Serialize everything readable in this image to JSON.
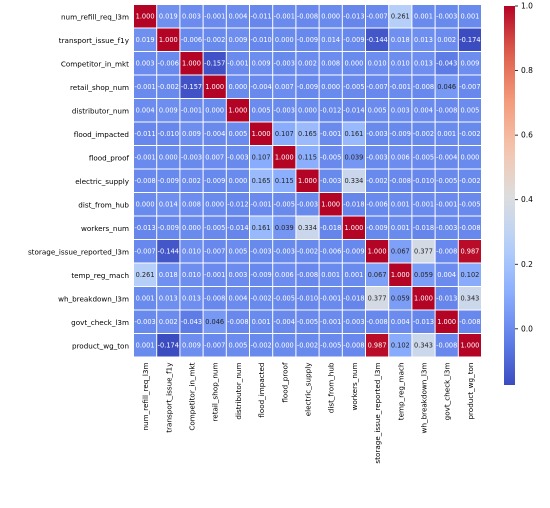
{
  "chart_data": {
    "type": "heatmap",
    "title": "",
    "xlabel": "",
    "ylabel": "",
    "labels": [
      "num_refill_req_l3m",
      "transport_issue_f1y",
      "Competitor_in_mkt",
      "retail_shop_num",
      "distributor_num",
      "flood_impacted",
      "flood_proof",
      "electric_supply",
      "dist_from_hub",
      "workers_num",
      "storage_issue_reported_l3m",
      "temp_reg_mach",
      "wh_breakdown_l3m",
      "govt_check_l3m",
      "product_wg_ton"
    ],
    "matrix": [
      [
        1.0,
        0.019,
        0.003,
        -0.001,
        0.004,
        -0.011,
        -0.001,
        -0.008,
        0.0,
        -0.013,
        -0.007,
        0.261,
        0.001,
        -0.003,
        0.001
      ],
      [
        0.019,
        1.0,
        -0.006,
        -0.002,
        0.009,
        -0.01,
        0.0,
        -0.009,
        0.014,
        -0.009,
        -0.144,
        0.018,
        0.013,
        0.002,
        -0.174
      ],
      [
        0.003,
        -0.006,
        1.0,
        -0.157,
        -0.001,
        0.009,
        -0.003,
        0.002,
        0.008,
        0.0,
        0.01,
        0.01,
        0.013,
        -0.043,
        0.009
      ],
      [
        -0.001,
        -0.002,
        -0.157,
        1.0,
        -0.0,
        -0.004,
        0.007,
        -0.009,
        -0.0,
        -0.005,
        -0.007,
        -0.001,
        -0.008,
        0.046,
        -0.007
      ],
      [
        0.004,
        0.009,
        -0.001,
        -0.0,
        1.0,
        0.005,
        -0.003,
        0.0,
        -0.012,
        -0.014,
        0.005,
        0.003,
        0.004,
        -0.008,
        0.005
      ],
      [
        -0.011,
        -0.01,
        0.009,
        -0.004,
        0.005,
        1.0,
        0.107,
        0.165,
        -0.001,
        0.161,
        -0.003,
        -0.009,
        -0.002,
        0.001,
        -0.002
      ],
      [
        -0.001,
        0.0,
        -0.003,
        0.007,
        -0.003,
        0.107,
        1.0,
        0.115,
        -0.005,
        0.039,
        -0.003,
        0.006,
        -0.005,
        -0.004,
        -0.0
      ],
      [
        -0.008,
        -0.009,
        0.002,
        -0.009,
        0.0,
        0.165,
        0.115,
        1.0,
        -0.003,
        0.334,
        -0.002,
        -0.008,
        -0.01,
        -0.005,
        -0.002
      ],
      [
        0.0,
        0.014,
        0.008,
        -0.0,
        -0.012,
        -0.001,
        -0.005,
        -0.003,
        1.0,
        -0.018,
        -0.006,
        0.001,
        -0.001,
        -0.001,
        -0.005
      ],
      [
        -0.013,
        -0.009,
        0.0,
        -0.005,
        -0.014,
        0.161,
        0.039,
        0.334,
        -0.018,
        1.0,
        -0.009,
        0.001,
        -0.018,
        -0.003,
        -0.008
      ],
      [
        -0.007,
        -0.144,
        0.01,
        -0.007,
        0.005,
        -0.003,
        -0.003,
        -0.002,
        -0.006,
        -0.009,
        1.0,
        0.067,
        0.377,
        -0.008,
        0.987
      ],
      [
        0.261,
        0.018,
        0.01,
        -0.001,
        0.003,
        -0.009,
        0.006,
        -0.008,
        0.001,
        0.001,
        0.067,
        1.0,
        0.059,
        0.004,
        0.102
      ],
      [
        0.001,
        0.013,
        0.013,
        -0.008,
        0.004,
        -0.002,
        -0.005,
        -0.01,
        -0.001,
        -0.018,
        0.377,
        0.059,
        1.0,
        -0.013,
        0.343
      ],
      [
        -0.003,
        0.002,
        -0.043,
        0.046,
        -0.008,
        0.001,
        -0.004,
        -0.005,
        -0.001,
        -0.003,
        -0.008,
        0.004,
        -0.013,
        1.0,
        -0.008
      ],
      [
        0.001,
        -0.174,
        0.009,
        -0.007,
        0.005,
        -0.002,
        -0.0,
        -0.002,
        -0.005,
        -0.008,
        0.987,
        0.102,
        0.343,
        -0.008,
        1.0
      ]
    ],
    "colormap": "coolwarm",
    "vmin": -0.174,
    "vmax": 1.0,
    "colorbar_ticks": [
      0.0,
      0.2,
      0.4,
      0.6,
      0.8,
      1.0
    ],
    "annotation_format": "0.000",
    "grid": true,
    "gridline_color": "#ffffff",
    "colorbar_position": "right",
    "label_highlight_colors": [
      "#e800e8",
      "#00e8e8"
    ]
  }
}
